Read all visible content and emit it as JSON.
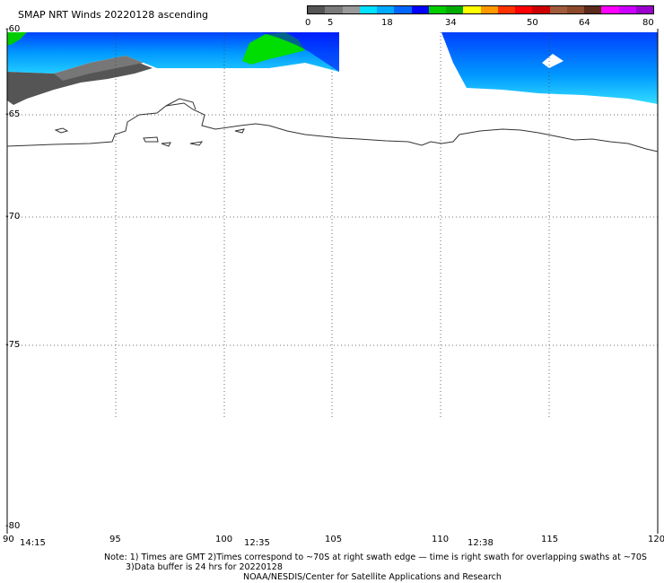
{
  "title": "SMAP NRT Winds 20220128 ascending",
  "colorbar": {
    "ticks": [
      "0",
      "5",
      "18",
      "34",
      "50",
      "64",
      "80"
    ],
    "colors": [
      "#555555",
      "#7a7a7a",
      "#999999",
      "#00e0ff",
      "#00aaff",
      "#0066ff",
      "#0000ff",
      "#00cc00",
      "#00aa00",
      "#ffff00",
      "#ff9900",
      "#ff3300",
      "#ff0000",
      "#cc0000",
      "#a05a3c",
      "#8c4a2c",
      "#5a2a1a",
      "#ff00ff",
      "#cc00ff",
      "#9900cc"
    ]
  },
  "axes": {
    "lat_labels": [
      "-60",
      "-65",
      "-70",
      "-75",
      "-80"
    ],
    "lon_labels": [
      "90",
      "95",
      "100",
      "105",
      "110",
      "115",
      "120"
    ],
    "times": [
      "14:15",
      "12:35",
      "12:38"
    ]
  },
  "notes": {
    "line1": "Note: 1) Times are GMT 2)Times correspond to ~70S at right swath edge — time is right swath for overlapping swaths at ~70S",
    "line2": "3)Data buffer is 24 hrs for 20220128",
    "line3": "NOAA/NESDIS/Center for Satellite Applications and Research"
  }
}
